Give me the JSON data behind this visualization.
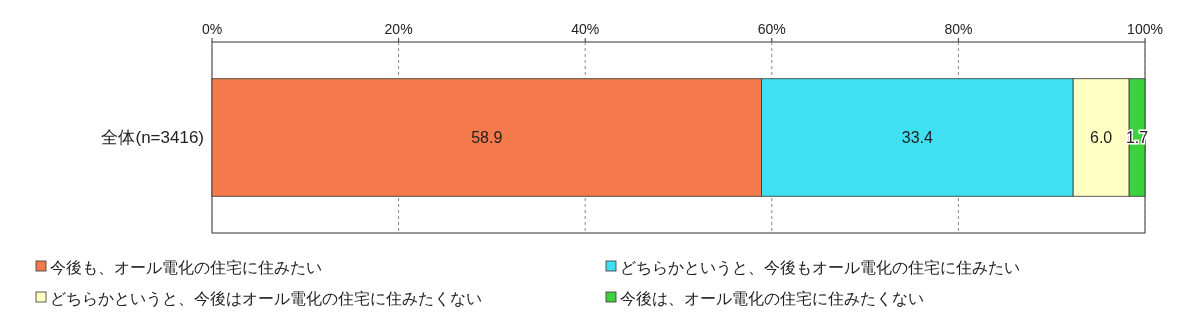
{
  "chart_data": {
    "type": "bar",
    "orientation": "horizontal",
    "stacked": true,
    "categories": [
      "全体(n=3416)"
    ],
    "series": [
      {
        "name": "今後も、オール電化の住宅に住みたい",
        "color": "#f47a4c",
        "values": [
          58.9
        ],
        "value_labels": [
          "58.9"
        ]
      },
      {
        "name": "どちらかというと、今後もオール電化の住宅に住みたい",
        "color": "#3ee0f2",
        "values": [
          33.4
        ],
        "value_labels": [
          "33.4"
        ]
      },
      {
        "name": "どちらかというと、今後はオール電化の住宅に住みたくない",
        "color": "#ffffc4",
        "values": [
          6.0
        ],
        "value_labels": [
          "6.0"
        ]
      },
      {
        "name": "今後は、オール電化の住宅に住みたくない",
        "color": "#3cd23c",
        "values": [
          1.7
        ],
        "value_labels": [
          "1.7"
        ]
      }
    ],
    "xlim": [
      0,
      100
    ],
    "xticks": [
      {
        "value": 0,
        "label": "0%"
      },
      {
        "value": 20,
        "label": "20%"
      },
      {
        "value": 40,
        "label": "40%"
      },
      {
        "value": 60,
        "label": "60%"
      },
      {
        "value": 80,
        "label": "80%"
      },
      {
        "value": 100,
        "label": "100%"
      }
    ],
    "grid": "x",
    "legend": "bottom"
  }
}
